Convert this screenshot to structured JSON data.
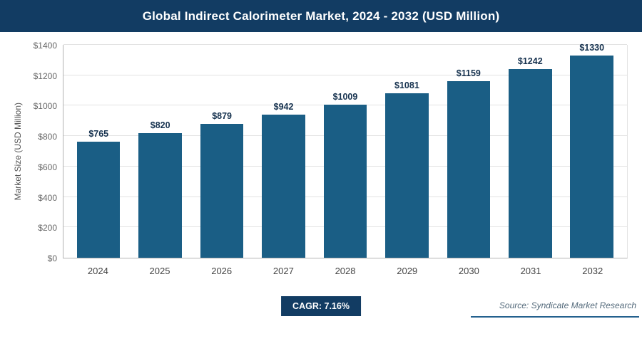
{
  "header": {
    "title": "Global Indirect Calorimeter Market, 2024 - 2032 (USD Million)"
  },
  "chart_data": {
    "type": "bar",
    "title": "Global Indirect Calorimeter Market, 2024 - 2032 (USD Million)",
    "categories": [
      "2024",
      "2025",
      "2026",
      "2027",
      "2028",
      "2029",
      "2030",
      "2031",
      "2032"
    ],
    "values": [
      765,
      820,
      879,
      942,
      1009,
      1081,
      1159,
      1242,
      1330
    ],
    "value_labels": [
      "$765",
      "$820",
      "$879",
      "$942",
      "$1009",
      "$1081",
      "$1159",
      "$1242",
      "$1330"
    ],
    "xlabel": "",
    "ylabel": "Market Size (USD Million)",
    "ylim": [
      0,
      1400
    ],
    "ytick_step": 200,
    "yticks": [
      "$0",
      "$200",
      "$400",
      "$600",
      "$800",
      "$1000",
      "$1200",
      "$1400"
    ],
    "grid": true,
    "legend": "none",
    "bar_color": "#1a5e85"
  },
  "footer": {
    "cagr_label": "CAGR: 7.16%",
    "source": "Source: Syndicate Market Research"
  },
  "colors": {
    "title_bar_bg": "#123c63",
    "title_text": "#ffffff",
    "bar": "#1a5e85",
    "value_label": "#16324f",
    "gridline": "#e3e3e3",
    "axis": "#b3b3b3",
    "badge_bg": "#123c63",
    "source_text": "#546a7b",
    "source_underline": "#24618e"
  }
}
